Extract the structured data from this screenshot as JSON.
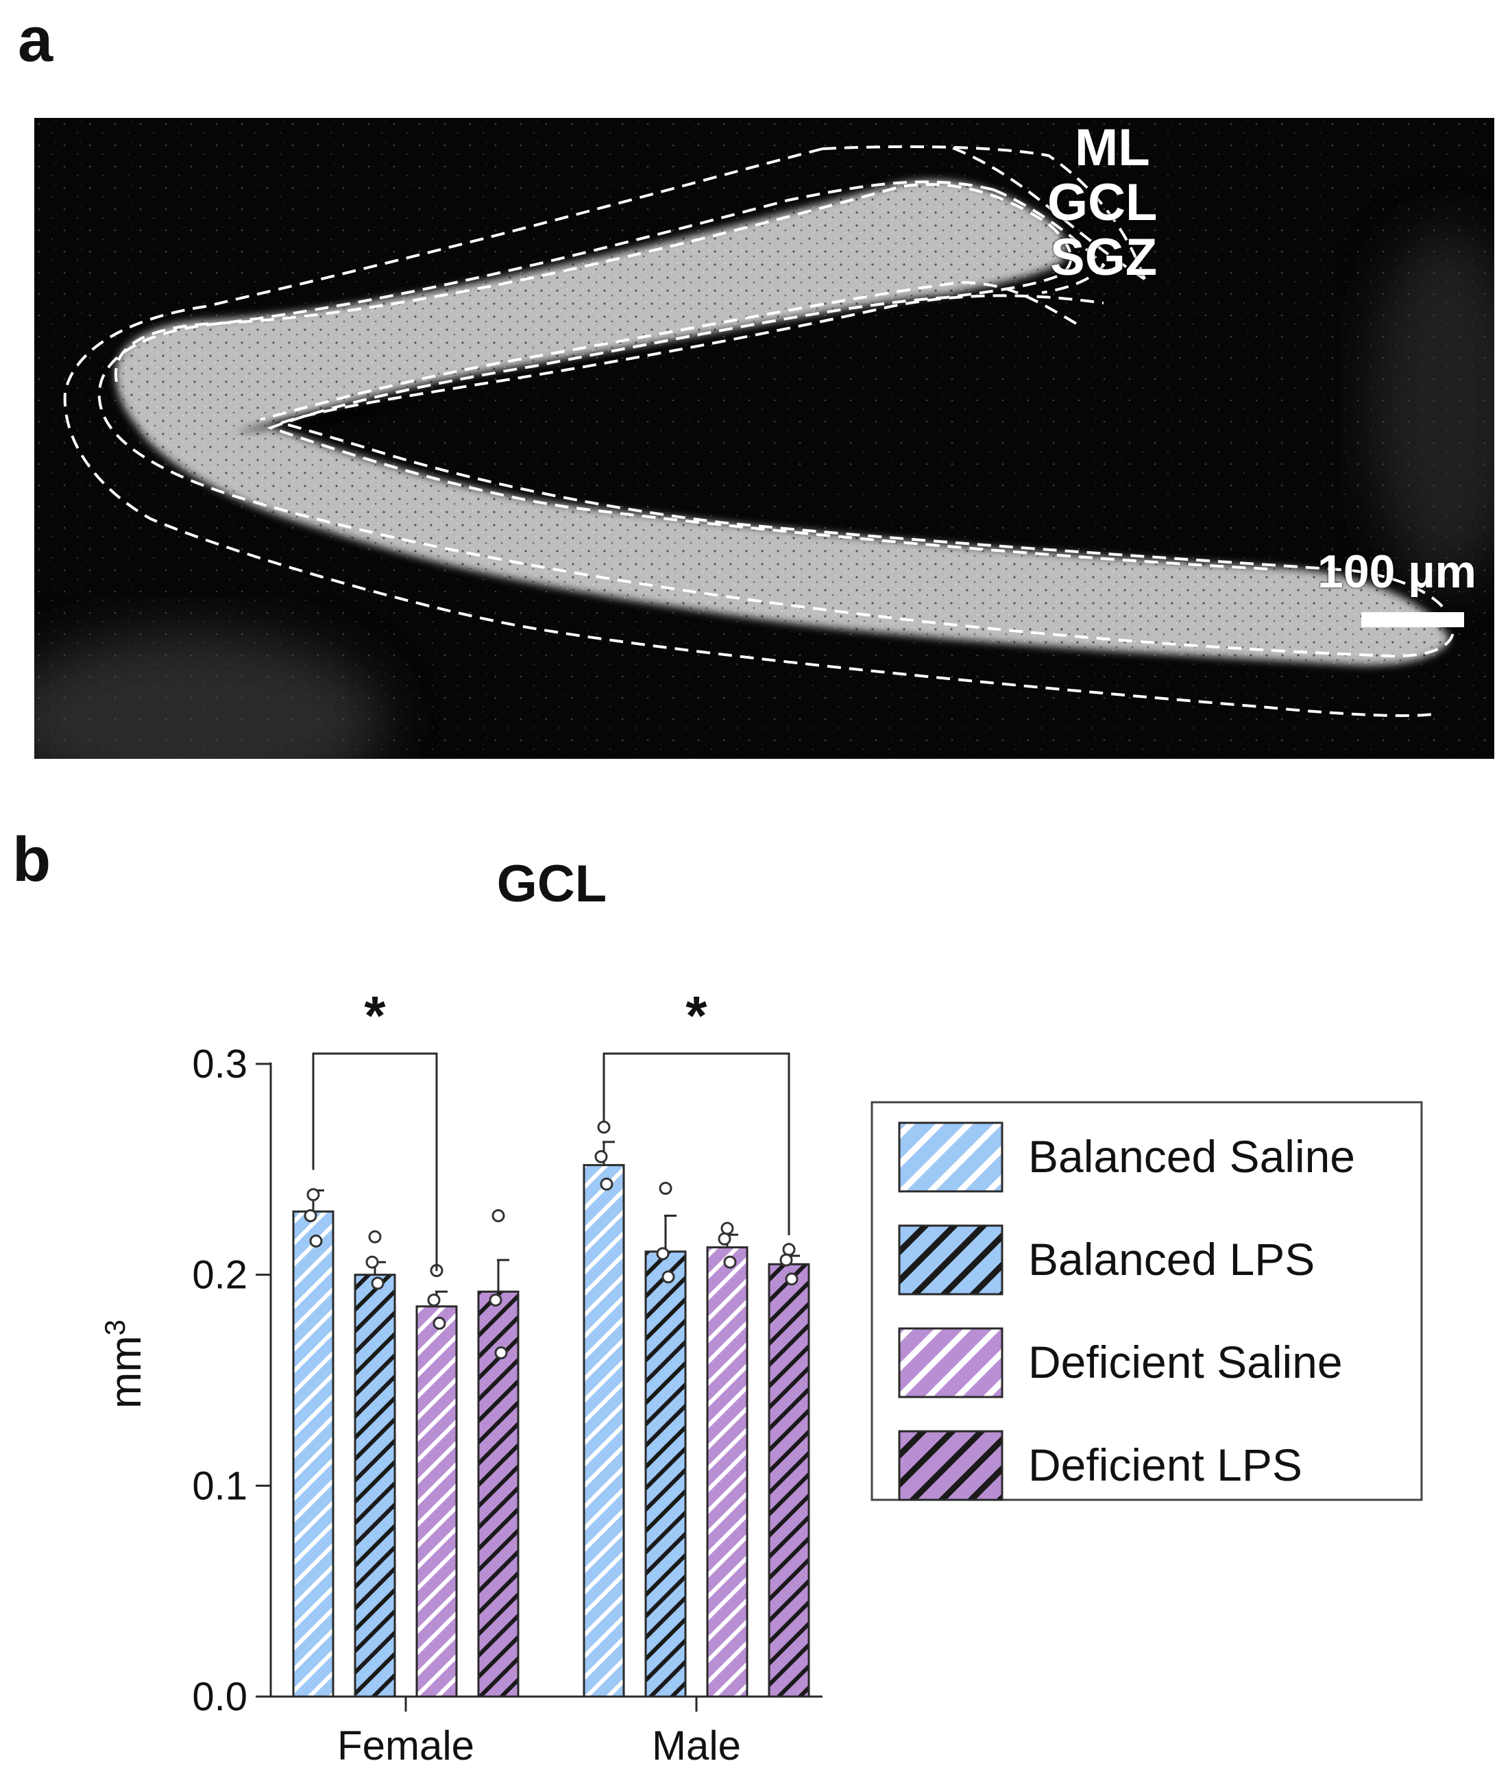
{
  "panel_a": {
    "letter": "a",
    "labels": {
      "ml": "ML",
      "gcl": "GCL",
      "sgz": "SGZ"
    },
    "scale_bar": "100 µm"
  },
  "panel_b": {
    "letter": "b"
  },
  "chart_data": {
    "type": "bar",
    "title": "GCL",
    "ylabel": "mm³",
    "xlabel": "",
    "categories": [
      "Female",
      "Male"
    ],
    "ylim": [
      0.0,
      0.3
    ],
    "yticks": [
      "0.0",
      "0.1",
      "0.2",
      "0.3"
    ],
    "series": [
      {
        "name": "Balanced Saline",
        "values": [
          0.23,
          0.252
        ],
        "errors": [
          0.01,
          0.011
        ],
        "points": [
          [
            0.238,
            0.228,
            0.216
          ],
          [
            0.27,
            0.256,
            0.243
          ]
        ]
      },
      {
        "name": "Balanced LPS",
        "values": [
          0.2,
          0.211
        ],
        "errors": [
          0.006,
          0.017
        ],
        "points": [
          [
            0.218,
            0.206,
            0.196
          ],
          [
            0.241,
            0.21,
            0.199
          ]
        ]
      },
      {
        "name": "Deficient Saline",
        "values": [
          0.185,
          0.213
        ],
        "errors": [
          0.007,
          0.006
        ],
        "points": [
          [
            0.202,
            0.188,
            0.177
          ],
          [
            0.222,
            0.217,
            0.206
          ]
        ]
      },
      {
        "name": "Deficient LPS",
        "values": [
          0.192,
          0.205
        ],
        "errors": [
          0.015,
          0.004
        ],
        "points": [
          [
            0.228,
            0.188,
            0.163
          ],
          [
            0.212,
            0.207,
            0.198
          ]
        ]
      }
    ],
    "colors": {
      "balanced": "#9ec8f5",
      "deficient": "#b98fd3",
      "edge": "#2a2a2a"
    },
    "significance": [
      {
        "category": "Female",
        "from_series": 0,
        "to_series": 2,
        "label": "*"
      },
      {
        "category": "Male",
        "from_series": 0,
        "to_series": 3,
        "label": "*"
      }
    ],
    "legend_position": "right"
  }
}
